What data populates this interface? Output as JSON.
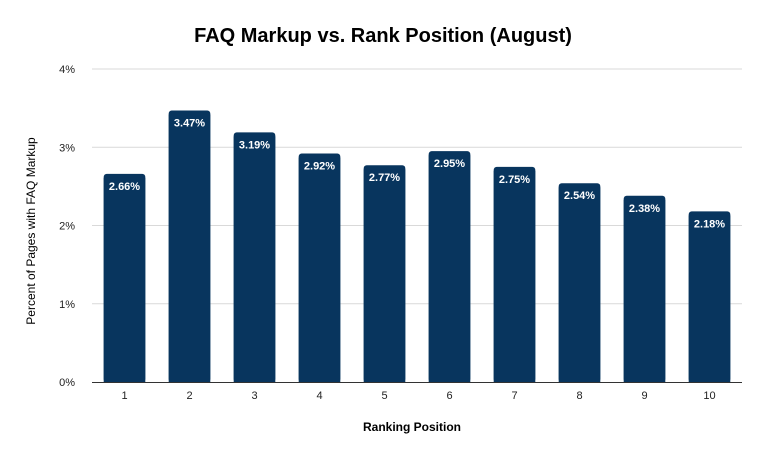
{
  "chart_data": {
    "type": "bar",
    "title": "FAQ Markup vs. Rank Position (August)",
    "xlabel": "Ranking Position",
    "ylabel": "Percent of Pages with FAQ Markup",
    "categories": [
      "1",
      "2",
      "3",
      "4",
      "5",
      "6",
      "7",
      "8",
      "9",
      "10"
    ],
    "values": [
      2.66,
      3.47,
      3.19,
      2.92,
      2.77,
      2.95,
      2.75,
      2.54,
      2.38,
      2.18
    ],
    "data_labels": [
      "2.66%",
      "3.47%",
      "3.19%",
      "2.92%",
      "2.77%",
      "2.95%",
      "2.75%",
      "2.54%",
      "2.38%",
      "2.18%"
    ],
    "ylim": [
      0,
      4
    ],
    "yticks": [
      0,
      1,
      2,
      3,
      4
    ],
    "ytick_labels": [
      "0%",
      "1%",
      "2%",
      "3%",
      "4%"
    ],
    "grid": true,
    "legend": "none",
    "bar_color": "#08355e",
    "label_color": "#ffffff"
  }
}
